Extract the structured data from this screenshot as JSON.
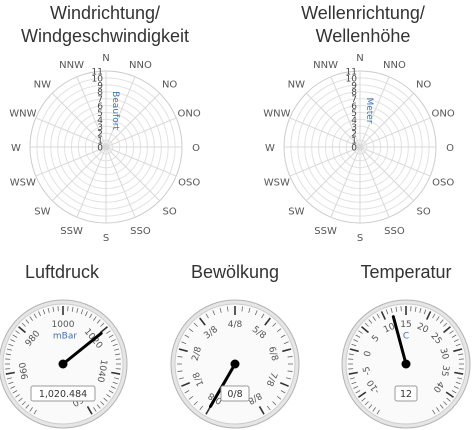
{
  "charts": {
    "wind": {
      "title_line1": "Windrichtung/",
      "title_line2": "Windgeschwindigkeit",
      "unit_label": "Beaufort"
    },
    "wave": {
      "title_line1": "Wellenrichtung/",
      "title_line2": "Wellenhöhe",
      "unit_label": "Meter"
    },
    "pressure": {
      "title": "Luftdruck",
      "unit_label": "mBar",
      "readout": "1,020.484"
    },
    "clouds": {
      "title": "Bewölkung",
      "unit_label": "",
      "readout": "0/8"
    },
    "temperature": {
      "title": "Temperatur",
      "unit_label": "C",
      "readout": "12"
    }
  },
  "chart_data": [
    {
      "type": "polar",
      "name_ref": "wind",
      "directions": [
        "N",
        "NNO",
        "NO",
        "ONO",
        "O",
        "OSO",
        "SO",
        "SSO",
        "S",
        "SSW",
        "SW",
        "WSW",
        "W",
        "WNW",
        "NW",
        "NNW"
      ],
      "radial_ticks": [
        "0",
        "1",
        "2",
        "3",
        "4",
        "5",
        "6",
        "7",
        "8",
        "9",
        "10",
        "11"
      ],
      "radial_range": [
        0,
        11
      ],
      "series": []
    },
    {
      "type": "polar",
      "name_ref": "wave",
      "directions": [
        "N",
        "NNO",
        "NO",
        "ONO",
        "O",
        "OSO",
        "SO",
        "SSO",
        "S",
        "SSW",
        "SW",
        "WSW",
        "W",
        "WNW",
        "NW",
        "NNW"
      ],
      "radial_ticks": [
        "0",
        "1",
        "2",
        "3",
        "4",
        "5",
        "6",
        "7",
        "8",
        "9",
        "10",
        "11"
      ],
      "radial_range": [
        0,
        11
      ],
      "series": []
    },
    {
      "type": "gauge",
      "name_ref": "pressure",
      "min": 940,
      "max": 1060,
      "major_labels": [
        "960",
        "980",
        "1000",
        "1020",
        "1040",
        "1060"
      ],
      "value": 1020.484
    },
    {
      "type": "gauge",
      "name_ref": "clouds",
      "min": 0,
      "max": 8,
      "major_labels": [
        "0/8",
        "1/8",
        "2/8",
        "3/8",
        "4/8",
        "5/8",
        "6/8",
        "7/8",
        "8/8"
      ],
      "value": 0
    },
    {
      "type": "gauge",
      "name_ref": "temperature",
      "min": -15,
      "max": 45,
      "major_labels": [
        "-10",
        "-5",
        "0",
        "5",
        "10",
        "15",
        "20",
        "25",
        "30",
        "35",
        "40"
      ],
      "value": 12
    }
  ]
}
